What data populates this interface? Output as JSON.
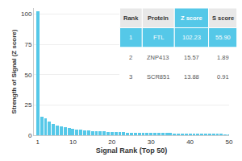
{
  "chart_data": {
    "type": "bar",
    "xlabel": "Signal Rank (Top 50)",
    "ylabel": "Strength of Signal (Z score)",
    "x": [
      1,
      2,
      3,
      4,
      5,
      6,
      7,
      8,
      9,
      10,
      11,
      12,
      13,
      14,
      15,
      16,
      17,
      18,
      19,
      20,
      21,
      22,
      23,
      24,
      25,
      26,
      27,
      28,
      29,
      30,
      31,
      32,
      33,
      34,
      35,
      36,
      37,
      38,
      39,
      40,
      41,
      42,
      43,
      44,
      45,
      46,
      47,
      48,
      49,
      50
    ],
    "values": [
      102.23,
      15.57,
      13.88,
      11.0,
      9.5,
      8.2,
      7.1,
      6.5,
      5.9,
      5.4,
      4.9,
      4.5,
      4.2,
      3.9,
      3.6,
      3.4,
      3.2,
      3.0,
      2.8,
      2.7,
      2.6,
      2.5,
      2.4,
      2.3,
      2.2,
      2.15,
      2.1,
      2.05,
      2.0,
      1.95,
      1.9,
      1.85,
      1.8,
      1.75,
      1.7,
      1.65,
      1.6,
      1.55,
      1.5,
      1.45,
      1.4,
      1.35,
      1.3,
      1.25,
      1.2,
      1.15,
      1.1,
      1.05,
      1.0,
      0.95
    ],
    "color": "#55c8e8",
    "xlim": [
      0,
      50
    ],
    "xticks": [
      1,
      10,
      20,
      30,
      40,
      50
    ],
    "ylim": [
      0,
      105
    ],
    "yticks": [
      0,
      25,
      50,
      75,
      100
    ],
    "grid": true,
    "table": {
      "header": [
        "Rank",
        "Protein",
        "Z score",
        "S score"
      ],
      "rows": [
        [
          "1",
          "FTL",
          "102.23",
          "55.90"
        ],
        [
          "2",
          "ZNP413",
          "15.57",
          "1.89"
        ],
        [
          "3",
          "SCR851",
          "13.88",
          "0.91"
        ]
      ],
      "color": "#55c8e8"
    }
  }
}
